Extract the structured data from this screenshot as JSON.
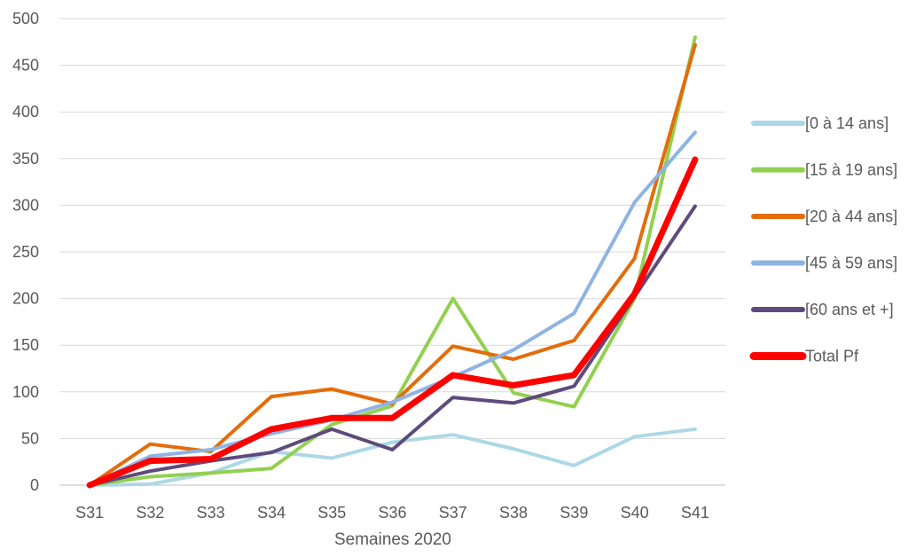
{
  "chart_data": {
    "type": "line",
    "title": "",
    "xlabel": "Semaines 2020",
    "ylabel": "",
    "categories": [
      "S31",
      "S32",
      "S33",
      "S34",
      "S35",
      "S36",
      "S37",
      "S38",
      "S39",
      "S40",
      "S41"
    ],
    "ylim": [
      0,
      500
    ],
    "yticks": [
      0,
      50,
      100,
      150,
      200,
      250,
      300,
      350,
      400,
      450,
      500
    ],
    "grid": true,
    "legend_position": "right",
    "series": [
      {
        "name": "[0 à 14 ans]",
        "color": "#add8e6",
        "width": 4,
        "values": [
          0,
          1,
          13,
          36,
          29,
          46,
          54,
          39,
          21,
          52,
          60
        ]
      },
      {
        "name": "[15 à 19 ans]",
        "color": "#92d050",
        "width": 4,
        "values": [
          0,
          9,
          13,
          18,
          65,
          85,
          200,
          99,
          84,
          200,
          480
        ]
      },
      {
        "name": "[20 à 44 ans]",
        "color": "#e46c0a",
        "width": 4,
        "values": [
          0,
          44,
          36,
          95,
          103,
          87,
          149,
          135,
          155,
          243,
          472
        ]
      },
      {
        "name": "[45 à 59 ans]",
        "color": "#8eb4e3",
        "width": 4,
        "values": [
          0,
          31,
          38,
          55,
          70,
          89,
          116,
          145,
          184,
          303,
          378
        ]
      },
      {
        "name": "[60 ans et +]",
        "color": "#5e4b7c",
        "width": 4,
        "values": [
          0,
          15,
          26,
          35,
          60,
          38,
          94,
          88,
          106,
          202,
          299
        ]
      },
      {
        "name": "Total Pf",
        "color": "#ff0000",
        "width": 7,
        "values": [
          0,
          26,
          28,
          60,
          72,
          72,
          118,
          107,
          118,
          205,
          349
        ]
      }
    ]
  }
}
